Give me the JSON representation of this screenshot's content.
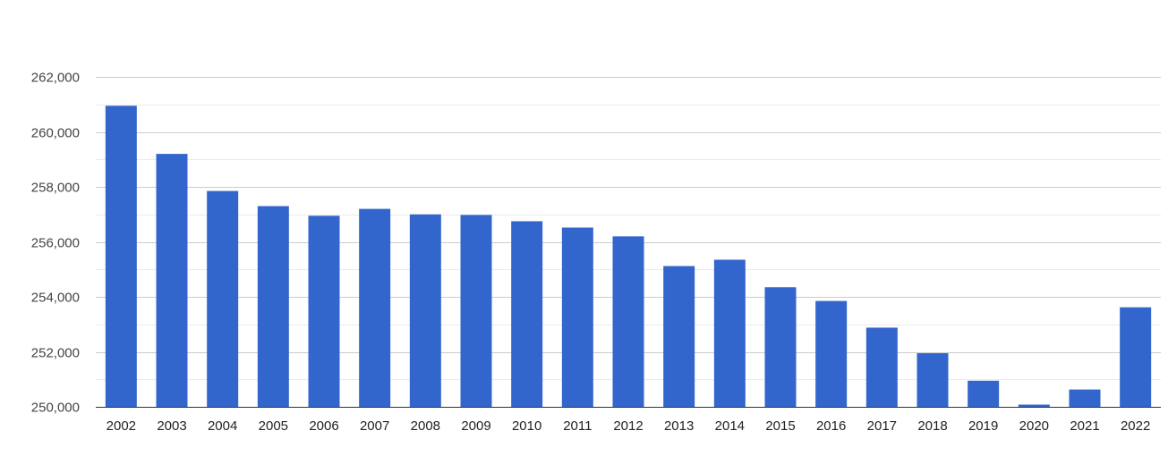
{
  "chart_data": {
    "type": "bar",
    "title": "",
    "xlabel": "",
    "ylabel": "",
    "categories": [
      "2002",
      "2003",
      "2004",
      "2005",
      "2006",
      "2007",
      "2008",
      "2009",
      "2010",
      "2011",
      "2012",
      "2013",
      "2014",
      "2015",
      "2016",
      "2017",
      "2018",
      "2019",
      "2020",
      "2021",
      "2022"
    ],
    "values": [
      260950,
      259200,
      257850,
      257300,
      256950,
      257200,
      257000,
      256980,
      256750,
      256520,
      256200,
      255120,
      255350,
      254350,
      253850,
      252880,
      251950,
      250950,
      250080,
      250630,
      253620
    ],
    "ylim": [
      250000,
      262000
    ],
    "yticks": [
      250000,
      252000,
      254000,
      256000,
      258000,
      260000,
      262000
    ],
    "ytick_labels": [
      "250,000",
      "252,000",
      "254,000",
      "256,000",
      "258,000",
      "260,000",
      "262,000"
    ],
    "grid": true,
    "minor_grid": true,
    "legend": "none",
    "bar_color": "#3366cc",
    "grid_color": "#cccccc",
    "minor_grid_color": "#ebebeb"
  }
}
